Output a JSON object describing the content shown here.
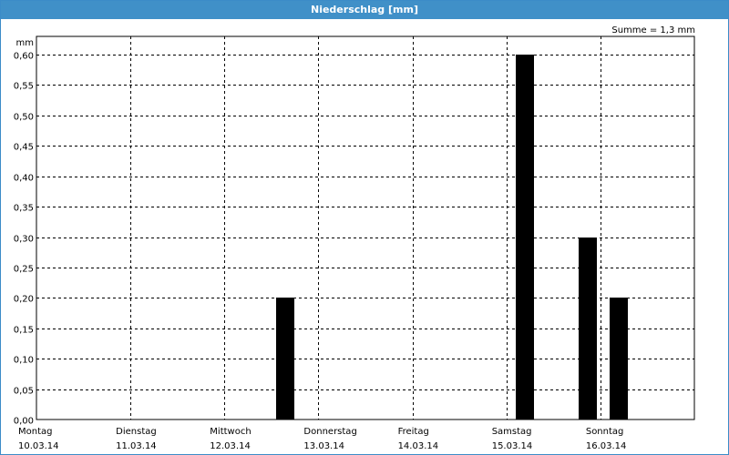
{
  "window": {
    "title": "Niederschlag [mm]"
  },
  "summary": {
    "text": "Summe = 1,3 mm"
  },
  "chart_data": {
    "type": "bar",
    "title": "Niederschlag [mm]",
    "ylabel": "mm",
    "xlabel": "",
    "ylim": [
      0,
      0.6
    ],
    "yticks": [
      "0,00",
      "0,05",
      "0,10",
      "0,15",
      "0,20",
      "0,25",
      "0,30",
      "0,35",
      "0,40",
      "0,45",
      "0,50",
      "0,55",
      "0,60"
    ],
    "days": [
      {
        "name": "Montag",
        "date": "10.03.14"
      },
      {
        "name": "Dienstag",
        "date": "11.03.14"
      },
      {
        "name": "Mittwoch",
        "date": "12.03.14"
      },
      {
        "name": "Donnerstag",
        "date": "13.03.14"
      },
      {
        "name": "Freitag",
        "date": "14.03.14"
      },
      {
        "name": "Samstag",
        "date": "15.03.14"
      },
      {
        "name": "Sonntag",
        "date": "16.03.14"
      }
    ],
    "bars": [
      {
        "day": 2.55,
        "value": 0.2
      },
      {
        "day": 5.1,
        "value": 0.6
      },
      {
        "day": 5.77,
        "value": 0.3
      },
      {
        "day": 6.1,
        "value": 0.2
      }
    ],
    "grid": true,
    "bar_color": "#000000"
  }
}
